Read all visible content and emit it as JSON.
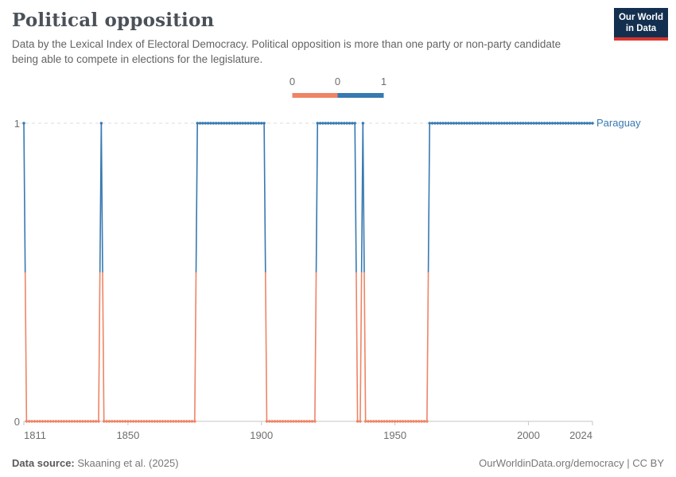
{
  "header": {
    "title": "Political opposition",
    "subtitle": "Data by the Lexical Index of Electoral Democracy. Political opposition is more than one party or non-party candidate being able to compete in elections for the legislature.",
    "logo": {
      "line1": "Our World",
      "line2": "in Data"
    }
  },
  "legend": {
    "labels": [
      "0",
      "0",
      "1"
    ],
    "segment_colors": [
      "#ee8465",
      "#3779b1"
    ]
  },
  "chart_data": {
    "type": "line",
    "entity": "Paraguay",
    "x_range": [
      1811,
      2024
    ],
    "x_ticks": [
      1811,
      1850,
      1900,
      1950,
      2000,
      2024
    ],
    "y_ticks": [
      0,
      1
    ],
    "ylim": [
      0,
      1
    ],
    "grid": "dashed gridline at y=1, solid axis at y=0",
    "legend_position": "top-center",
    "value_colors": {
      "0": "#ee8465",
      "1": "#3779b1"
    },
    "series": [
      {
        "name": "Paraguay",
        "label_color": "#3779b1",
        "segments": [
          {
            "start": 1811,
            "end": 1811,
            "value": 1
          },
          {
            "start": 1812,
            "end": 1839,
            "value": 0
          },
          {
            "start": 1840,
            "end": 1840,
            "value": 1
          },
          {
            "start": 1841,
            "end": 1875,
            "value": 0
          },
          {
            "start": 1876,
            "end": 1901,
            "value": 1
          },
          {
            "start": 1902,
            "end": 1920,
            "value": 0
          },
          {
            "start": 1921,
            "end": 1935,
            "value": 1
          },
          {
            "start": 1936,
            "end": 1937,
            "value": 0
          },
          {
            "start": 1938,
            "end": 1938,
            "value": 1
          },
          {
            "start": 1939,
            "end": 1962,
            "value": 0
          },
          {
            "start": 1963,
            "end": 2024,
            "value": 1
          }
        ]
      }
    ]
  },
  "footer": {
    "source_label": "Data source:",
    "source_value": "Skaaning et al. (2025)",
    "right": "OurWorldinData.org/democracy | CC BY"
  }
}
